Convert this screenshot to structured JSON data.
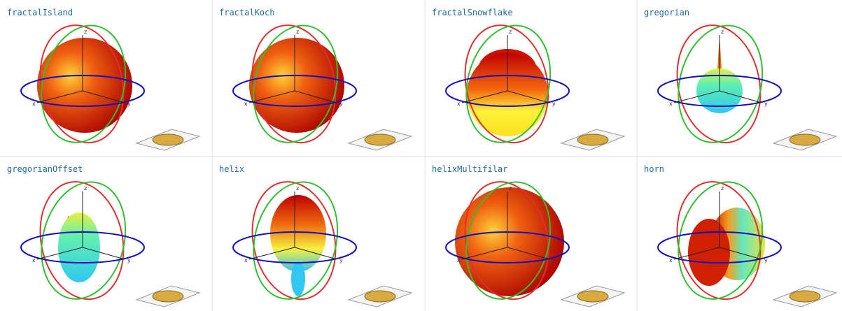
{
  "gallery": {
    "items": [
      {
        "label": "fractalIsland"
      },
      {
        "label": "fractalKoch"
      },
      {
        "label": "fractalSnowflake"
      },
      {
        "label": "gregorian"
      },
      {
        "label": "gregorianOffset"
      },
      {
        "label": "helix"
      },
      {
        "label": "helixMultifilar"
      },
      {
        "label": "horn"
      }
    ]
  },
  "axis_labels": [
    "x",
    "y",
    "z"
  ]
}
